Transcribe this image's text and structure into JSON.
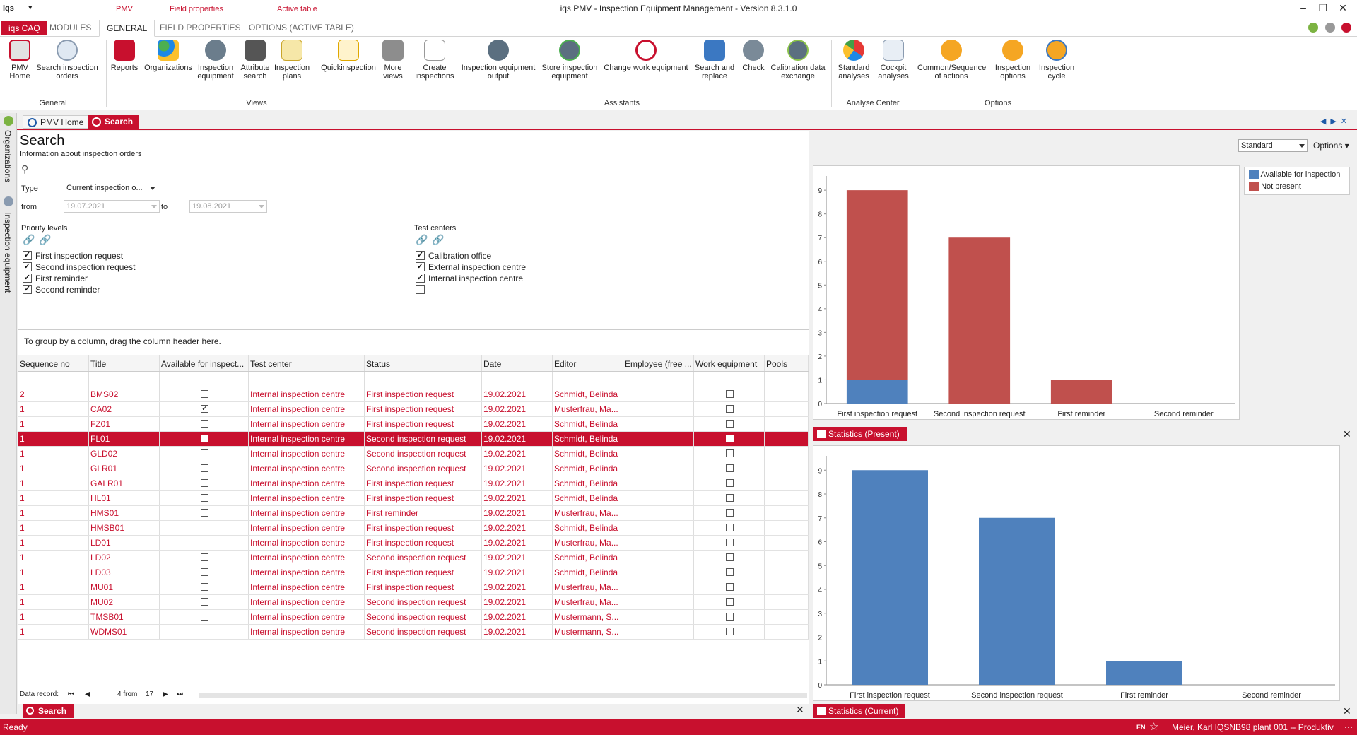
{
  "titlebar": {
    "brand": "iqs",
    "qat_arrow": "▾",
    "context_tabs": [
      "PMV",
      "Field properties",
      "Active table"
    ],
    "window_title": "iqs PMV - Inspection Equipment Management - Version 8.3.1.0"
  },
  "ribbon_tabs": {
    "app": "iqs CAQ",
    "modules": "MODULES",
    "general": "GENERAL",
    "field_properties": "FIELD PROPERTIES",
    "options_active_table": "OPTIONS (ACTIVE TABLE)"
  },
  "ribbon": {
    "buttons": {
      "pmv_home": "PMV\nHome",
      "search_inspection_orders": "Search inspection\norders",
      "reports": "Reports",
      "organizations": "Organizations",
      "inspection_equipment": "Inspection\nequipment",
      "attribute_search": "Attribute\nsearch",
      "inspection_plans": "Inspection\nplans",
      "quickinspection": "Quickinspection",
      "more_views": "More\nviews",
      "create_inspections": "Create\ninspections",
      "inspection_equipment_output": "Inspection equipment\noutput",
      "store_inspection_equipment": "Store inspection\nequipment",
      "change_work_equipment": "Change work equipment",
      "search_and_replace": "Search and\nreplace",
      "check": "Check",
      "calibration_data_exchange": "Calibration data\nexchange",
      "standard_analyses": "Standard\nanalyses",
      "cockpit_analyses": "Cockpit\nanalyses",
      "common_sequence_of_actions": "Common/Sequence\nof actions",
      "inspection_options": "Inspection\noptions",
      "inspection_cycle": "Inspection\ncycle"
    },
    "groups": {
      "general": "General",
      "views": "Views",
      "assistants": "Assistants",
      "analyse_center": "Analyse Center",
      "options": "Options"
    }
  },
  "sidebar": {
    "organizations": "Organizations",
    "inspection_equipment": "Inspection equipment"
  },
  "doc_tabs": {
    "home": "PMV Home",
    "search": "Search"
  },
  "search": {
    "title": "Search",
    "subtitle": "Information about inspection orders",
    "type_label": "Type",
    "type_value": "Current inspection o...",
    "from_label": "from",
    "from_value": "19.07.2021",
    "to_label": "to",
    "to_value": "19.08.2021",
    "priority_title": "Priority levels",
    "priority_levels": [
      {
        "label": "First inspection request",
        "checked": true
      },
      {
        "label": "Second inspection request",
        "checked": true
      },
      {
        "label": "First reminder",
        "checked": true
      },
      {
        "label": "Second reminder",
        "checked": true
      }
    ],
    "test_centers_title": "Test centers",
    "test_centers": [
      {
        "label": "Calibration office",
        "checked": true
      },
      {
        "label": "External inspection centre",
        "checked": true
      },
      {
        "label": "Internal inspection centre",
        "checked": true
      },
      {
        "label": "",
        "checked": false
      }
    ],
    "group_hint": "To group by a column, drag the column header here."
  },
  "grid": {
    "columns": [
      "Sequence no",
      "Title",
      "Available for inspect...",
      "Test center",
      "Status",
      "Date",
      "Editor",
      "Employee (free ...",
      "Work equipment",
      "Pools"
    ],
    "rows": [
      {
        "seq": "2",
        "title": "BMS02",
        "avail": false,
        "center": "Internal inspection centre",
        "status": "First inspection request",
        "date": "19.02.2021",
        "editor": "Schmidt, Belinda",
        "work": false
      },
      {
        "seq": "1",
        "title": "CA02",
        "avail": true,
        "center": "Internal inspection centre",
        "status": "First inspection request",
        "date": "19.02.2021",
        "editor": "Musterfrau, Ma...",
        "work": false
      },
      {
        "seq": "1",
        "title": "FZ01",
        "avail": false,
        "center": "Internal inspection centre",
        "status": "First inspection request",
        "date": "19.02.2021",
        "editor": "Schmidt, Belinda",
        "work": false
      },
      {
        "seq": "1",
        "title": "FL01",
        "avail": false,
        "center": "Internal inspection centre",
        "status": "Second inspection request",
        "date": "19.02.2021",
        "editor": "Schmidt, Belinda",
        "work": false,
        "selected": true
      },
      {
        "seq": "1",
        "title": "GLD02",
        "avail": false,
        "center": "Internal inspection centre",
        "status": "Second inspection request",
        "date": "19.02.2021",
        "editor": "Schmidt, Belinda",
        "work": false
      },
      {
        "seq": "1",
        "title": "GLR01",
        "avail": false,
        "center": "Internal inspection centre",
        "status": "Second inspection request",
        "date": "19.02.2021",
        "editor": "Schmidt, Belinda",
        "work": false
      },
      {
        "seq": "1",
        "title": "GALR01",
        "avail": false,
        "center": "Internal inspection centre",
        "status": "First inspection request",
        "date": "19.02.2021",
        "editor": "Schmidt, Belinda",
        "work": false
      },
      {
        "seq": "1",
        "title": "HL01",
        "avail": false,
        "center": "Internal inspection centre",
        "status": "First inspection request",
        "date": "19.02.2021",
        "editor": "Schmidt, Belinda",
        "work": false
      },
      {
        "seq": "1",
        "title": "HMS01",
        "avail": false,
        "center": "Internal inspection centre",
        "status": "First reminder",
        "date": "19.02.2021",
        "editor": "Musterfrau, Ma...",
        "work": false
      },
      {
        "seq": "1",
        "title": "HMSB01",
        "avail": false,
        "center": "Internal inspection centre",
        "status": "First inspection request",
        "date": "19.02.2021",
        "editor": "Schmidt, Belinda",
        "work": false
      },
      {
        "seq": "1",
        "title": "LD01",
        "avail": false,
        "center": "Internal inspection centre",
        "status": "First inspection request",
        "date": "19.02.2021",
        "editor": "Musterfrau, Ma...",
        "work": false
      },
      {
        "seq": "1",
        "title": "LD02",
        "avail": false,
        "center": "Internal inspection centre",
        "status": "Second inspection request",
        "date": "19.02.2021",
        "editor": "Schmidt, Belinda",
        "work": false
      },
      {
        "seq": "1",
        "title": "LD03",
        "avail": false,
        "center": "Internal inspection centre",
        "status": "First inspection request",
        "date": "19.02.2021",
        "editor": "Schmidt, Belinda",
        "work": false
      },
      {
        "seq": "1",
        "title": "MU01",
        "avail": false,
        "center": "Internal inspection centre",
        "status": "First inspection request",
        "date": "19.02.2021",
        "editor": "Musterfrau, Ma...",
        "work": false
      },
      {
        "seq": "1",
        "title": "MU02",
        "avail": false,
        "center": "Internal inspection centre",
        "status": "Second inspection request",
        "date": "19.02.2021",
        "editor": "Musterfrau, Ma...",
        "work": false
      },
      {
        "seq": "1",
        "title": "TMSB01",
        "avail": false,
        "center": "Internal inspection centre",
        "status": "Second inspection request",
        "date": "19.02.2021",
        "editor": "Mustermann, S...",
        "work": false
      },
      {
        "seq": "1",
        "title": "WDMS01",
        "avail": false,
        "center": "Internal inspection centre",
        "status": "Second inspection request",
        "date": "19.02.2021",
        "editor": "Mustermann, S...",
        "work": false
      }
    ]
  },
  "navigator": {
    "label": "Data record:",
    "position": "4 from",
    "total": "17"
  },
  "bottom_tabs": {
    "search": "Search",
    "stats_present": "Statistics (Present)",
    "stats_current": "Statistics (Current)"
  },
  "right_toolbar": {
    "layout_value": "Standard",
    "options_label": "Options"
  },
  "colors": {
    "accent": "#c8102e",
    "bar_blue": "#4f81bd",
    "bar_red": "#c0504d"
  },
  "chart_data": [
    {
      "type": "bar",
      "stacked": true,
      "categories": [
        "First inspection request",
        "Second inspection request",
        "First reminder",
        "Second reminder"
      ],
      "series": [
        {
          "name": "Available for inspection",
          "values": [
            1,
            0,
            0,
            0
          ],
          "color": "#4f81bd"
        },
        {
          "name": "Not present",
          "values": [
            8,
            7,
            1,
            0
          ],
          "color": "#c0504d"
        }
      ],
      "yticks": [
        0,
        1,
        2,
        3,
        4,
        5,
        6,
        7,
        8,
        9
      ],
      "ylim": [
        0,
        9.6
      ],
      "legend": "top-right",
      "grid": false
    },
    {
      "type": "bar",
      "categories": [
        "First inspection request",
        "Second inspection request",
        "First reminder",
        "Second reminder"
      ],
      "series": [
        {
          "values": [
            9,
            7,
            1,
            0
          ],
          "color": "#4f81bd"
        }
      ],
      "yticks": [
        0,
        1,
        2,
        3,
        4,
        5,
        6,
        7,
        8,
        9
      ],
      "ylim": [
        0,
        9.6
      ],
      "legend": "none",
      "grid": false
    }
  ],
  "statusbar": {
    "left": "Ready",
    "lang": "EN",
    "star": "☆",
    "right": "Meier, Karl   IQSNB98   plant 001   --   Produktiv"
  }
}
